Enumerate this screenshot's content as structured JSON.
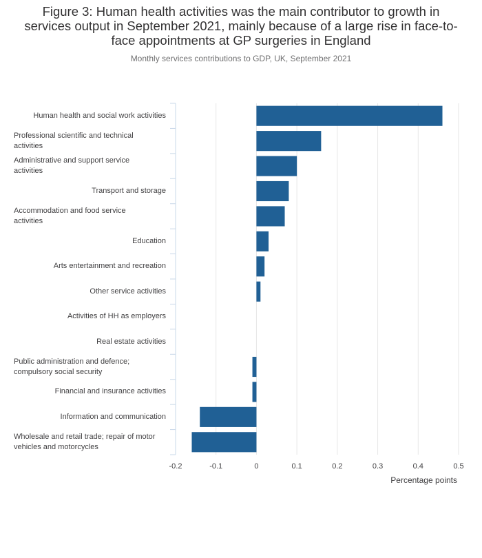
{
  "title": "Figure 3: Human health activities was the main contributor to growth in services output in September 2021, mainly because of a large rise in face-to-face appointments at GP surgeries in England",
  "subtitle": "Monthly services contributions to GDP, UK, September 2021",
  "colors": {
    "bar": "#206095",
    "grid": "#e6e6e6",
    "axis": "#c9d8e8",
    "text": "#414042"
  },
  "chart_data": {
    "type": "bar",
    "orientation": "horizontal",
    "title": "Figure 3: Human health activities was the main contributor to growth in services output in September 2021, mainly because of a large rise in face-to-face appointments at GP surgeries in England",
    "subtitle": "Monthly services contributions to GDP, UK, September 2021",
    "xlabel": "Percentage points",
    "ylabel": "",
    "xlim": [
      -0.2,
      0.5
    ],
    "xticks": [
      -0.2,
      -0.1,
      0,
      0.1,
      0.2,
      0.3,
      0.4,
      0.5
    ],
    "xtick_labels": [
      "-0.2",
      "-0.1",
      "0",
      "0.1",
      "0.2",
      "0.3",
      "0.4",
      "0.5"
    ],
    "grid": true,
    "categories": [
      [
        "Human health and social work activities"
      ],
      [
        "Professional scientific and technical",
        "activities"
      ],
      [
        "Administrative and support service",
        "activities"
      ],
      [
        "Transport and storage"
      ],
      [
        "Accommodation and food service",
        "activities"
      ],
      [
        "Education"
      ],
      [
        "Arts entertainment and recreation"
      ],
      [
        "Other service activities"
      ],
      [
        "Activities of HH as employers"
      ],
      [
        "Real estate activities"
      ],
      [
        "Public administration and defence;",
        "compulsory social security"
      ],
      [
        "Financial and insurance activities"
      ],
      [
        "Information and communication"
      ],
      [
        "Wholesale and retail trade; repair of motor",
        "vehicles and motorcycles"
      ]
    ],
    "values": [
      0.46,
      0.16,
      0.1,
      0.08,
      0.07,
      0.03,
      0.02,
      0.01,
      0.0,
      0.0,
      -0.01,
      -0.01,
      -0.14,
      -0.16
    ]
  }
}
